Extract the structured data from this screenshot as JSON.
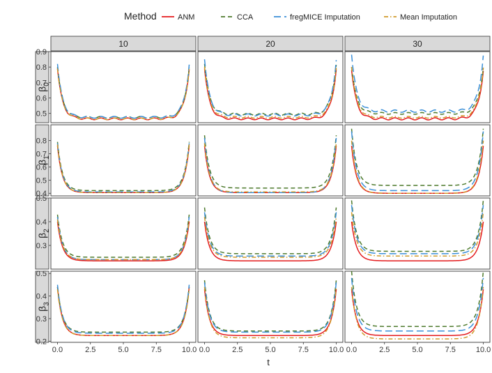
{
  "chart_data": {
    "type": "line",
    "xlabel": "t",
    "ylabel": "",
    "legend": {
      "title": "Method",
      "placement": "top",
      "entries": [
        {
          "name": "ANM",
          "color": "#e41a1c",
          "dash": "solid"
        },
        {
          "name": "CCA",
          "color": "#4d7a2c",
          "dash": "dashed"
        },
        {
          "name": "fregMICE Imputation",
          "color": "#3a8fd8",
          "dash": "longdash"
        },
        {
          "name": "Mean Imputation",
          "color": "#d09a2a",
          "dash": "dotdash"
        }
      ]
    },
    "columns": [
      "10",
      "20",
      "30"
    ],
    "rows": [
      {
        "label": "β",
        "subscript": "0",
        "ylim": [
          0.44,
          0.9
        ],
        "yticks": [
          "0.9",
          "0.8",
          "0.7",
          "0.6",
          "0.5"
        ],
        "ytick_values": [
          0.9,
          0.8,
          0.7,
          0.6,
          0.5
        ]
      },
      {
        "label": "β",
        "subscript": "1",
        "ylim": [
          0.38,
          0.92
        ],
        "yticks": [
          "0.8",
          "0.7",
          "0.6",
          "0.5",
          "0.4"
        ],
        "ytick_values": [
          0.8,
          0.7,
          0.6,
          0.5,
          0.4
        ]
      },
      {
        "label": "β",
        "subscript": "2",
        "ylim": [
          0.2,
          0.5
        ],
        "yticks": [
          "0.5",
          "0.4",
          "0.3"
        ],
        "ytick_values": [
          0.5,
          0.4,
          0.3
        ]
      },
      {
        "label": "β",
        "subscript": "3",
        "ylim": [
          0.195,
          0.51
        ],
        "yticks": [
          "0.5",
          "0.4",
          "0.3",
          "0.2"
        ],
        "ytick_values": [
          0.5,
          0.4,
          0.3,
          0.2
        ]
      }
    ],
    "xlim": [
      -0.5,
      10.5
    ],
    "xticks": [
      "0.0",
      "2.5",
      "5.0",
      "7.5",
      "10.0"
    ],
    "xtick_values": [
      0,
      2.5,
      5,
      7.5,
      10
    ],
    "grid": false,
    "series_curves": {
      "ANM": [
        [
          [
            0.79,
            0.465,
            0.006
          ],
          [
            0.79,
            0.465,
            0.006
          ],
          [
            0.78,
            0.465,
            0.007
          ]
        ],
        [
          [
            0.76,
            0.405,
            0
          ],
          [
            0.76,
            0.405,
            0
          ],
          [
            0.76,
            0.4,
            0
          ]
        ],
        [
          [
            0.4,
            0.235,
            0
          ],
          [
            0.4,
            0.235,
            0
          ],
          [
            0.4,
            0.235,
            0
          ]
        ],
        [
          [
            0.44,
            0.225,
            0
          ],
          [
            0.43,
            0.225,
            0
          ],
          [
            0.43,
            0.225,
            0
          ]
        ]
      ],
      "CCA": [
        [
          [
            0.8,
            0.475,
            0.006
          ],
          [
            0.82,
            0.495,
            0.007
          ],
          [
            0.8,
            0.5,
            0.006
          ]
        ],
        [
          [
            0.79,
            0.42,
            0
          ],
          [
            0.84,
            0.44,
            0
          ],
          [
            0.89,
            0.46,
            0
          ]
        ],
        [
          [
            0.43,
            0.25,
            0
          ],
          [
            0.46,
            0.265,
            0
          ],
          [
            0.49,
            0.275,
            0
          ]
        ],
        [
          [
            0.44,
            0.24,
            0
          ],
          [
            0.47,
            0.245,
            0
          ],
          [
            0.51,
            0.265,
            0
          ]
        ]
      ],
      "fregMICE Imputation": [
        [
          [
            0.82,
            0.475,
            0.006
          ],
          [
            0.85,
            0.49,
            0.007
          ],
          [
            0.88,
            0.515,
            0.008
          ]
        ],
        [
          [
            0.78,
            0.41,
            0
          ],
          [
            0.82,
            0.405,
            0
          ],
          [
            0.87,
            0.42,
            0
          ]
        ],
        [
          [
            0.42,
            0.24,
            0
          ],
          [
            0.44,
            0.255,
            0
          ],
          [
            0.47,
            0.265,
            0
          ]
        ],
        [
          [
            0.45,
            0.235,
            0
          ],
          [
            0.46,
            0.24,
            0
          ],
          [
            0.48,
            0.245,
            0
          ]
        ]
      ],
      "Mean Imputation": [
        [
          [
            0.79,
            0.465,
            0.005
          ],
          [
            0.8,
            0.475,
            0.006
          ],
          [
            0.8,
            0.475,
            0.006
          ]
        ],
        [
          [
            0.77,
            0.405,
            0
          ],
          [
            0.78,
            0.41,
            0
          ],
          [
            0.8,
            0.4,
            0
          ]
        ],
        [
          [
            0.41,
            0.24,
            0
          ],
          [
            0.42,
            0.25,
            0
          ],
          [
            0.44,
            0.255,
            0
          ]
        ],
        [
          [
            0.43,
            0.225,
            0
          ],
          [
            0.44,
            0.215,
            0
          ],
          [
            0.44,
            0.21,
            0
          ]
        ]
      ]
    }
  }
}
